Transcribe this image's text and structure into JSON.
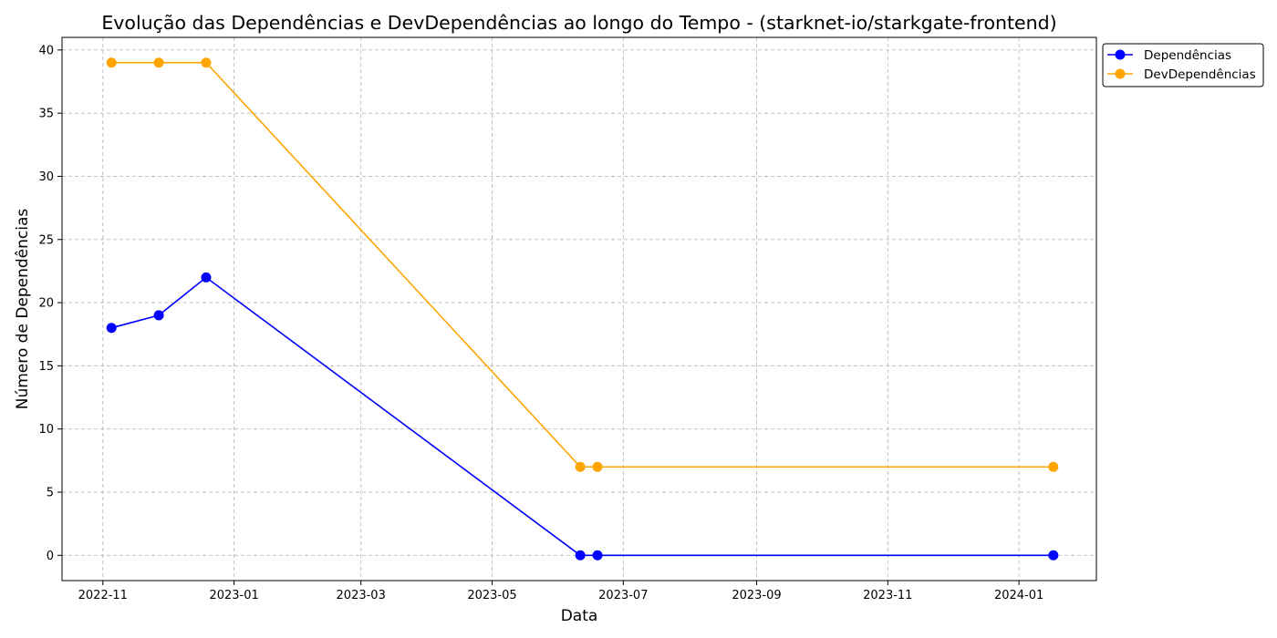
{
  "chart_data": {
    "type": "line",
    "title": "Evolução das Dependências e DevDependências ao longo do Tempo - (starknet-io/starkgate-frontend)",
    "xlabel": "Data",
    "ylabel": "Número de Dependências",
    "x_range": [
      "2022-10-13",
      "2024-02-06"
    ],
    "ylim": [
      -2,
      41
    ],
    "grid": true,
    "legend_position": "outside-top-right",
    "x_ticks": [
      {
        "date": "2022-11-01",
        "label": "2022-11"
      },
      {
        "date": "2023-01-01",
        "label": "2023-01"
      },
      {
        "date": "2023-03-01",
        "label": "2023-03"
      },
      {
        "date": "2023-05-01",
        "label": "2023-05"
      },
      {
        "date": "2023-07-01",
        "label": "2023-07"
      },
      {
        "date": "2023-09-01",
        "label": "2023-09"
      },
      {
        "date": "2023-11-01",
        "label": "2023-11"
      },
      {
        "date": "2024-01-01",
        "label": "2024-01"
      }
    ],
    "y_ticks": [
      0,
      5,
      10,
      15,
      20,
      25,
      30,
      35,
      40
    ],
    "series": [
      {
        "name": "Dependências",
        "color": "#0000ff",
        "points": [
          {
            "x": "2022-11-05",
            "y": 18
          },
          {
            "x": "2022-11-27",
            "y": 19
          },
          {
            "x": "2022-12-19",
            "y": 22
          },
          {
            "x": "2023-06-11",
            "y": 0
          },
          {
            "x": "2023-06-19",
            "y": 0
          },
          {
            "x": "2024-01-17",
            "y": 0
          }
        ]
      },
      {
        "name": "DevDependências",
        "color": "#ffa500",
        "points": [
          {
            "x": "2022-11-05",
            "y": 39
          },
          {
            "x": "2022-11-27",
            "y": 39
          },
          {
            "x": "2022-12-19",
            "y": 39
          },
          {
            "x": "2023-06-11",
            "y": 7
          },
          {
            "x": "2023-06-19",
            "y": 7
          },
          {
            "x": "2024-01-17",
            "y": 7
          }
        ]
      }
    ]
  }
}
